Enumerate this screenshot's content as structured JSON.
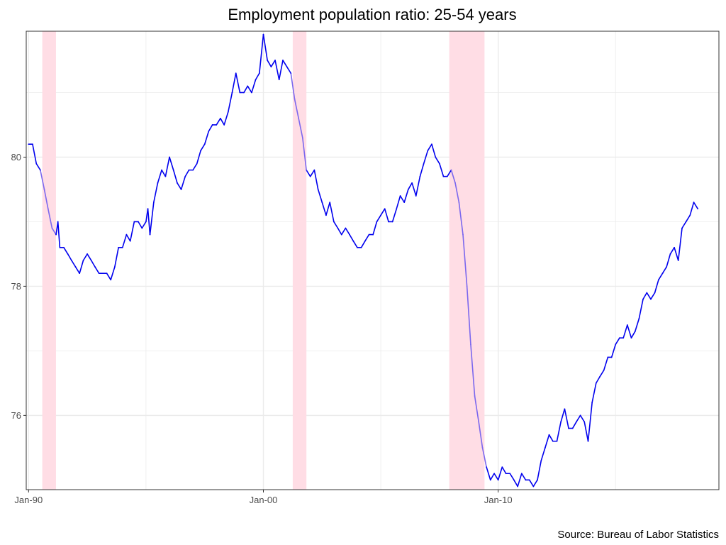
{
  "chart_data": {
    "type": "line",
    "title": "Employment population ratio: 25-54 years",
    "caption": "Source: Bureau of Labor Statistics",
    "xlabel": "",
    "ylabel": "",
    "x_range": [
      1989.9,
      2019.4
    ],
    "ylim": [
      74.85,
      81.95
    ],
    "grid": true,
    "x_ticks": [
      {
        "value": 1990,
        "label": "Jan-90"
      },
      {
        "value": 2000,
        "label": "Jan-00"
      },
      {
        "value": 2010,
        "label": "Jan-10"
      }
    ],
    "x_minor_ticks": [
      1995,
      2005,
      2015
    ],
    "y_ticks": [
      {
        "value": 76,
        "label": "76"
      },
      {
        "value": 78,
        "label": "78"
      },
      {
        "value": 80,
        "label": "80"
      }
    ],
    "y_minor_ticks": [
      77,
      79,
      81
    ],
    "recessions": [
      {
        "start": 1990.583,
        "end": 1991.167
      },
      {
        "start": 2001.25,
        "end": 2001.833
      },
      {
        "start": 2007.917,
        "end": 2009.417
      }
    ],
    "colors": {
      "line": "#0000ee",
      "line_in_recession": "#7b68ee",
      "recession_band": "#ffdde5",
      "grid": "#ebebeb",
      "border": "#333333"
    },
    "series": [
      {
        "points": [
          [
            1990.0,
            80.2
          ],
          [
            1990.17,
            80.2
          ],
          [
            1990.33,
            79.9
          ],
          [
            1990.5,
            79.8
          ],
          [
            1990.67,
            79.5
          ],
          [
            1990.83,
            79.2
          ],
          [
            1991.0,
            78.9
          ],
          [
            1991.17,
            78.8
          ],
          [
            1991.25,
            79.0
          ],
          [
            1991.33,
            78.6
          ],
          [
            1991.5,
            78.6
          ],
          [
            1991.67,
            78.5
          ],
          [
            1991.83,
            78.4
          ],
          [
            1992.0,
            78.3
          ],
          [
            1992.17,
            78.2
          ],
          [
            1992.33,
            78.4
          ],
          [
            1992.5,
            78.5
          ],
          [
            1992.67,
            78.4
          ],
          [
            1992.83,
            78.3
          ],
          [
            1993.0,
            78.2
          ],
          [
            1993.33,
            78.2
          ],
          [
            1993.5,
            78.1
          ],
          [
            1993.67,
            78.3
          ],
          [
            1993.83,
            78.6
          ],
          [
            1994.0,
            78.6
          ],
          [
            1994.17,
            78.8
          ],
          [
            1994.33,
            78.7
          ],
          [
            1994.5,
            79.0
          ],
          [
            1994.67,
            79.0
          ],
          [
            1994.83,
            78.9
          ],
          [
            1995.0,
            79.0
          ],
          [
            1995.08,
            79.2
          ],
          [
            1995.17,
            78.8
          ],
          [
            1995.33,
            79.3
          ],
          [
            1995.5,
            79.6
          ],
          [
            1995.67,
            79.8
          ],
          [
            1995.83,
            79.7
          ],
          [
            1996.0,
            80.0
          ],
          [
            1996.17,
            79.8
          ],
          [
            1996.33,
            79.6
          ],
          [
            1996.5,
            79.5
          ],
          [
            1996.67,
            79.7
          ],
          [
            1996.83,
            79.8
          ],
          [
            1997.0,
            79.8
          ],
          [
            1997.17,
            79.9
          ],
          [
            1997.33,
            80.1
          ],
          [
            1997.5,
            80.2
          ],
          [
            1997.67,
            80.4
          ],
          [
            1997.83,
            80.5
          ],
          [
            1998.0,
            80.5
          ],
          [
            1998.17,
            80.6
          ],
          [
            1998.33,
            80.5
          ],
          [
            1998.5,
            80.7
          ],
          [
            1998.67,
            81.0
          ],
          [
            1998.83,
            81.3
          ],
          [
            1999.0,
            81.0
          ],
          [
            1999.17,
            81.0
          ],
          [
            1999.33,
            81.1
          ],
          [
            1999.5,
            81.0
          ],
          [
            1999.67,
            81.2
          ],
          [
            1999.83,
            81.3
          ],
          [
            2000.0,
            81.9
          ],
          [
            2000.17,
            81.5
          ],
          [
            2000.33,
            81.4
          ],
          [
            2000.5,
            81.5
          ],
          [
            2000.67,
            81.2
          ],
          [
            2000.83,
            81.5
          ],
          [
            2001.0,
            81.4
          ],
          [
            2001.17,
            81.3
          ],
          [
            2001.33,
            80.9
          ],
          [
            2001.5,
            80.6
          ],
          [
            2001.67,
            80.3
          ],
          [
            2001.83,
            79.8
          ],
          [
            2002.0,
            79.7
          ],
          [
            2002.17,
            79.8
          ],
          [
            2002.33,
            79.5
          ],
          [
            2002.5,
            79.3
          ],
          [
            2002.67,
            79.1
          ],
          [
            2002.83,
            79.3
          ],
          [
            2003.0,
            79.0
          ],
          [
            2003.17,
            78.9
          ],
          [
            2003.33,
            78.8
          ],
          [
            2003.5,
            78.9
          ],
          [
            2003.67,
            78.8
          ],
          [
            2003.83,
            78.7
          ],
          [
            2004.0,
            78.6
          ],
          [
            2004.17,
            78.6
          ],
          [
            2004.33,
            78.7
          ],
          [
            2004.5,
            78.8
          ],
          [
            2004.67,
            78.8
          ],
          [
            2004.83,
            79.0
          ],
          [
            2005.0,
            79.1
          ],
          [
            2005.17,
            79.2
          ],
          [
            2005.33,
            79.0
          ],
          [
            2005.5,
            79.0
          ],
          [
            2005.67,
            79.2
          ],
          [
            2005.83,
            79.4
          ],
          [
            2006.0,
            79.3
          ],
          [
            2006.17,
            79.5
          ],
          [
            2006.33,
            79.6
          ],
          [
            2006.5,
            79.4
          ],
          [
            2006.67,
            79.7
          ],
          [
            2006.83,
            79.9
          ],
          [
            2007.0,
            80.1
          ],
          [
            2007.17,
            80.2
          ],
          [
            2007.33,
            80.0
          ],
          [
            2007.5,
            79.9
          ],
          [
            2007.67,
            79.7
          ],
          [
            2007.83,
            79.7
          ],
          [
            2008.0,
            79.8
          ],
          [
            2008.17,
            79.6
          ],
          [
            2008.33,
            79.3
          ],
          [
            2008.5,
            78.8
          ],
          [
            2008.67,
            78.0
          ],
          [
            2008.83,
            77.1
          ],
          [
            2009.0,
            76.3
          ],
          [
            2009.17,
            75.9
          ],
          [
            2009.33,
            75.5
          ],
          [
            2009.5,
            75.2
          ],
          [
            2009.67,
            75.0
          ],
          [
            2009.83,
            75.1
          ],
          [
            2010.0,
            75.0
          ],
          [
            2010.17,
            75.2
          ],
          [
            2010.33,
            75.1
          ],
          [
            2010.5,
            75.1
          ],
          [
            2010.67,
            75.0
          ],
          [
            2010.83,
            74.9
          ],
          [
            2011.0,
            75.1
          ],
          [
            2011.17,
            75.0
          ],
          [
            2011.33,
            75.0
          ],
          [
            2011.5,
            74.9
          ],
          [
            2011.67,
            75.0
          ],
          [
            2011.83,
            75.3
          ],
          [
            2012.0,
            75.5
          ],
          [
            2012.17,
            75.7
          ],
          [
            2012.33,
            75.6
          ],
          [
            2012.5,
            75.6
          ],
          [
            2012.67,
            75.9
          ],
          [
            2012.83,
            76.1
          ],
          [
            2013.0,
            75.8
          ],
          [
            2013.17,
            75.8
          ],
          [
            2013.33,
            75.9
          ],
          [
            2013.5,
            76.0
          ],
          [
            2013.67,
            75.9
          ],
          [
            2013.83,
            75.6
          ],
          [
            2014.0,
            76.2
          ],
          [
            2014.17,
            76.5
          ],
          [
            2014.33,
            76.6
          ],
          [
            2014.5,
            76.7
          ],
          [
            2014.67,
            76.9
          ],
          [
            2014.83,
            76.9
          ],
          [
            2015.0,
            77.1
          ],
          [
            2015.17,
            77.2
          ],
          [
            2015.33,
            77.2
          ],
          [
            2015.5,
            77.4
          ],
          [
            2015.67,
            77.2
          ],
          [
            2015.83,
            77.3
          ],
          [
            2016.0,
            77.5
          ],
          [
            2016.17,
            77.8
          ],
          [
            2016.33,
            77.9
          ],
          [
            2016.5,
            77.8
          ],
          [
            2016.67,
            77.9
          ],
          [
            2016.83,
            78.1
          ],
          [
            2017.0,
            78.2
          ],
          [
            2017.17,
            78.3
          ],
          [
            2017.33,
            78.5
          ],
          [
            2017.5,
            78.6
          ],
          [
            2017.67,
            78.4
          ],
          [
            2017.83,
            78.9
          ],
          [
            2018.0,
            79.0
          ],
          [
            2018.17,
            79.1
          ],
          [
            2018.33,
            79.3
          ],
          [
            2018.5,
            79.2
          ]
        ]
      }
    ]
  }
}
